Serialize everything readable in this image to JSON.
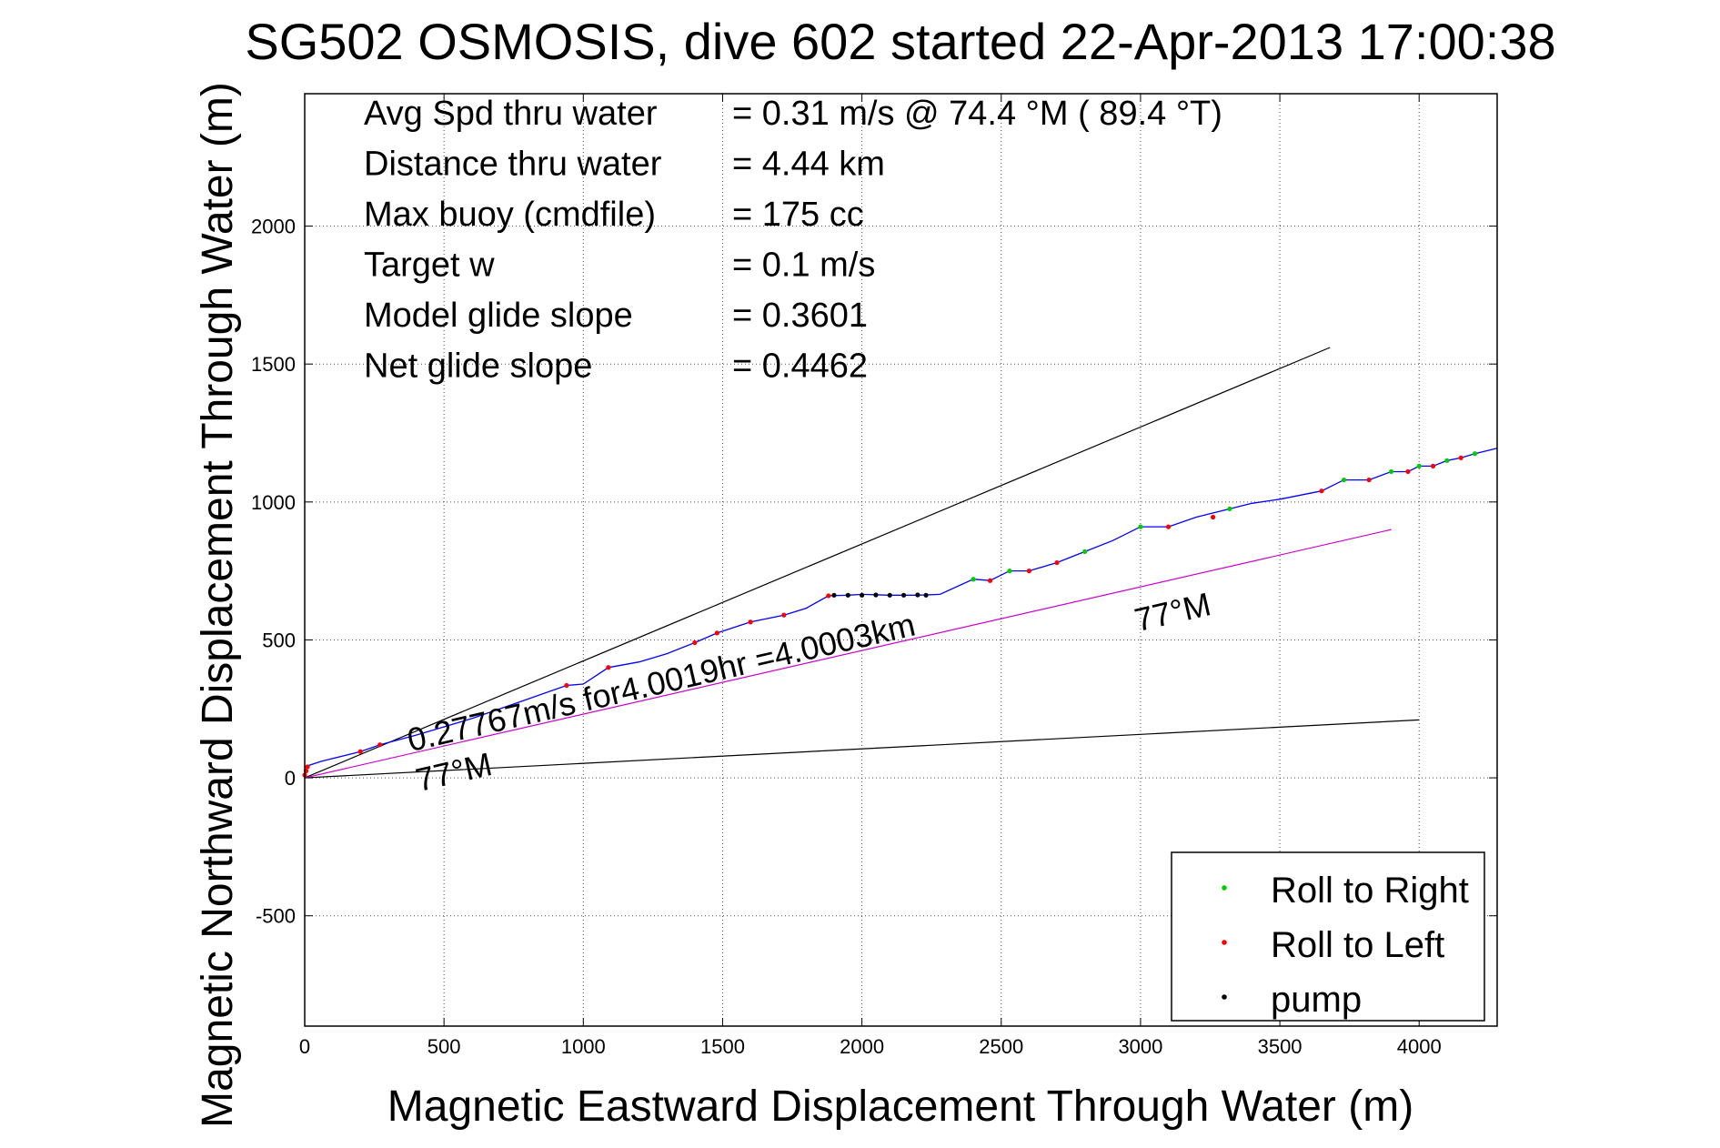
{
  "chart_data": {
    "type": "line",
    "title": "SG502 OSMOSIS, dive 602 started 22-Apr-2013 17:00:38",
    "xlabel": "Magnetic Eastward Displacement Through Water (m)",
    "ylabel": "Magnetic Northward Displacement Through Water (m)",
    "xlim": [
      0,
      4280
    ],
    "ylim": [
      -900,
      2480
    ],
    "x_ticks": [
      "0",
      "500",
      "1000",
      "1500",
      "2000",
      "2500",
      "3000",
      "3500",
      "4000"
    ],
    "x_tick_values": [
      0,
      500,
      1000,
      1500,
      2000,
      2500,
      3000,
      3500,
      4000
    ],
    "y_ticks": [
      "-500",
      "0",
      "500",
      "1000",
      "1500",
      "2000"
    ],
    "y_tick_values": [
      -500,
      0,
      500,
      1000,
      1500,
      2000
    ],
    "grid": true,
    "legend_placement": "bottom-right",
    "stats": [
      {
        "label": "Avg Spd thru water",
        "value": "=  0.31 m/s @  74.4 °M ( 89.4 °T)"
      },
      {
        "label": "Distance thru water",
        "value": "=  4.44 km"
      },
      {
        "label": "Max buoy (cmdfile)",
        "value": "= 175 cc"
      },
      {
        "label": "Target w",
        "value": "= 0.1 m/s"
      },
      {
        "label": "Model glide slope",
        "value": "= 0.3601"
      },
      {
        "label": "Net glide slope",
        "value": "= 0.4462"
      }
    ],
    "guide_lines": [
      {
        "x": [
          0,
          3680
        ],
        "y": [
          0,
          1560
        ],
        "color": "#000000"
      },
      {
        "x": [
          0,
          4000
        ],
        "y": [
          0,
          210
        ],
        "color": "#000000"
      },
      {
        "x": [
          0,
          3900
        ],
        "y": [
          0,
          900
        ],
        "color": "#cc00cc"
      }
    ],
    "track": {
      "color": "#0000ff",
      "x": [
        0,
        60,
        200,
        270,
        400,
        500,
        600,
        700,
        800,
        940,
        1000,
        1090,
        1200,
        1300,
        1400,
        1480,
        1600,
        1720,
        1800,
        1880,
        1950,
        2000,
        2100,
        2200,
        2280,
        2400,
        2460,
        2530,
        2600,
        2700,
        2800,
        2900,
        3000,
        3100,
        3200,
        3320,
        3400,
        3500,
        3650,
        3730,
        3820,
        3900,
        3960,
        4000,
        4050,
        4100,
        4150,
        4200,
        4280
      ],
      "y": [
        40,
        60,
        95,
        120,
        155,
        185,
        215,
        250,
        285,
        335,
        340,
        400,
        420,
        450,
        490,
        525,
        565,
        590,
        615,
        660,
        662,
        665,
        662,
        662,
        665,
        720,
        715,
        750,
        750,
        780,
        820,
        860,
        910,
        910,
        945,
        975,
        995,
        1010,
        1040,
        1080,
        1080,
        1110,
        1110,
        1130,
        1130,
        1150,
        1160,
        1175,
        1195
      ]
    },
    "series": [
      {
        "name": "Roll to Right",
        "color": "#00cc00",
        "x": [
          2400,
          2530,
          2800,
          3000,
          3320,
          3730,
          3900,
          4000,
          4100,
          4200
        ],
        "y": [
          720,
          750,
          820,
          910,
          975,
          1080,
          1110,
          1130,
          1150,
          1175
        ]
      },
      {
        "name": "Roll to Left",
        "color": "#ff0000",
        "x": [
          0,
          5,
          10,
          200,
          270,
          940,
          1090,
          1400,
          1480,
          1600,
          1720,
          1880,
          2460,
          2600,
          2700,
          3100,
          3260,
          3650,
          3820,
          3960,
          4050,
          4150
        ],
        "y": [
          10,
          25,
          40,
          95,
          120,
          335,
          400,
          490,
          525,
          565,
          590,
          660,
          715,
          750,
          780,
          910,
          945,
          1040,
          1080,
          1110,
          1130,
          1160
        ]
      },
      {
        "name": "pump",
        "color": "#000000",
        "x": [
          1900,
          1950,
          2000,
          2050,
          2100,
          2150,
          2200,
          2230
        ],
        "y": [
          662,
          662,
          662,
          663,
          662,
          662,
          663,
          662
        ]
      }
    ],
    "annotations": [
      {
        "text": "0.27767m/s for4.0019hr =4.0003km",
        "x": 380,
        "y": 95,
        "rotation_deg": -13
      },
      {
        "text": "77°M",
        "x": 410,
        "y": -50,
        "rotation_deg": -13
      },
      {
        "text": "77°M",
        "x": 2990,
        "y": 530,
        "rotation_deg": -13
      }
    ]
  }
}
